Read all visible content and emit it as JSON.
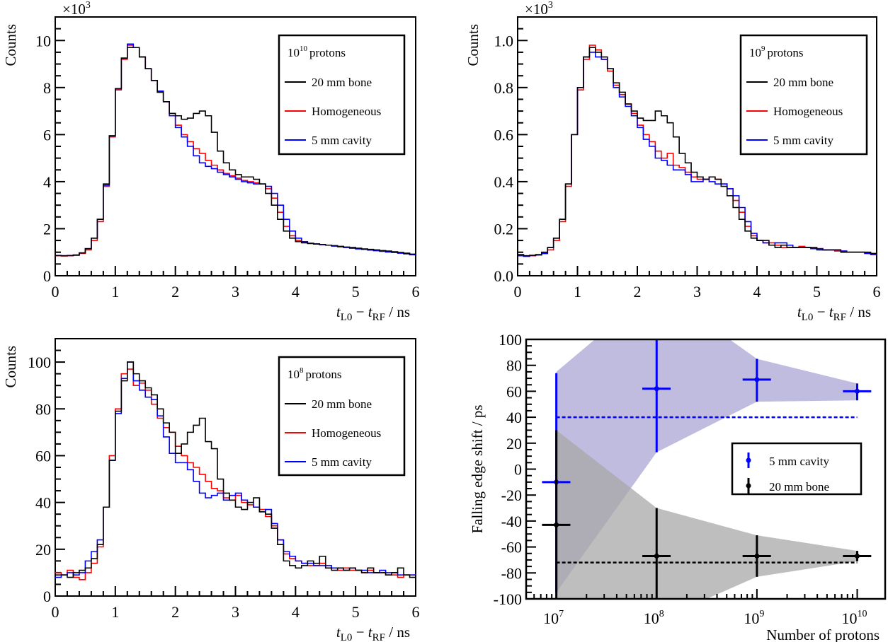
{
  "colors": {
    "bone": "#000000",
    "homogeneous": "#ff0000",
    "cavity": "#0000ff",
    "cavity_band": "#a9a5d4",
    "bone_band": "#a8a8a8"
  },
  "chart_data": [
    {
      "type": "line",
      "title": "10^10 protons",
      "legend": {
        "header_base": "10",
        "header_exp": "10",
        "header_text": "protons",
        "entries": [
          "20 mm bone",
          "Homogeneous",
          "5 mm cavity"
        ],
        "placement": "top-right"
      },
      "ylabel": "Counts",
      "yscale": {
        "times": "×10",
        "exp": "3"
      },
      "xlabel": {
        "t1": "t",
        "s1": "L0",
        "mid": " − ",
        "t2": "t",
        "s2": "RF",
        "tail": " / ns"
      },
      "xlim": [
        0,
        6
      ],
      "ylim": [
        0,
        11
      ],
      "xticks": [
        "0",
        "1",
        "2",
        "3",
        "4",
        "5",
        "6"
      ],
      "yticks": [
        "0",
        "2",
        "4",
        "6",
        "8",
        "10"
      ],
      "bin_width": 0.1,
      "series": [
        {
          "name": "20 mm bone",
          "values": [
            0.86,
            0.85,
            0.86,
            0.88,
            0.97,
            1.15,
            1.6,
            2.4,
            3.9,
            5.95,
            7.95,
            9.25,
            9.7,
            9.7,
            9.3,
            8.8,
            8.3,
            7.8,
            7.4,
            6.9,
            6.8,
            6.65,
            6.7,
            6.9,
            7.0,
            6.8,
            6.1,
            5.3,
            4.8,
            4.5,
            4.3,
            4.2,
            4.2,
            4.1,
            3.9,
            3.5,
            3.0,
            2.4,
            1.9,
            1.6,
            1.45,
            1.4,
            1.37,
            1.35,
            1.33,
            1.3,
            1.28,
            1.25,
            1.22,
            1.2,
            1.17,
            1.14,
            1.12,
            1.1,
            1.07,
            1.05,
            1.02,
            0.99,
            0.96,
            0.92
          ]
        },
        {
          "name": "Homogeneous",
          "values": [
            0.85,
            0.84,
            0.85,
            0.87,
            0.95,
            1.1,
            1.5,
            2.3,
            3.8,
            5.9,
            7.9,
            9.2,
            9.8,
            9.7,
            9.3,
            8.8,
            8.3,
            7.8,
            7.4,
            6.9,
            6.4,
            6.0,
            5.7,
            5.4,
            5.2,
            4.9,
            4.7,
            4.5,
            4.35,
            4.25,
            4.15,
            4.05,
            4.0,
            3.95,
            3.9,
            3.7,
            3.3,
            2.7,
            2.1,
            1.7,
            1.5,
            1.42,
            1.38,
            1.35,
            1.33,
            1.3,
            1.27,
            1.24,
            1.21,
            1.18,
            1.15,
            1.13,
            1.1,
            1.07,
            1.05,
            1.02,
            1.0,
            0.97,
            0.94,
            0.9
          ]
        },
        {
          "name": "5 mm cavity",
          "values": [
            0.86,
            0.85,
            0.86,
            0.88,
            0.97,
            1.15,
            1.6,
            2.4,
            3.85,
            5.95,
            7.95,
            9.25,
            9.85,
            9.7,
            9.3,
            8.8,
            8.3,
            7.85,
            7.4,
            6.8,
            6.3,
            5.9,
            5.5,
            5.1,
            4.8,
            4.65,
            4.55,
            4.4,
            4.3,
            4.2,
            4.1,
            4.0,
            3.95,
            3.9,
            3.9,
            3.8,
            3.5,
            3.0,
            2.4,
            1.9,
            1.6,
            1.45,
            1.38,
            1.35,
            1.32,
            1.3,
            1.26,
            1.23,
            1.2,
            1.17,
            1.14,
            1.12,
            1.09,
            1.07,
            1.04,
            1.01,
            0.99,
            0.96,
            0.93,
            0.89
          ]
        }
      ]
    },
    {
      "type": "line",
      "title": "10^9 protons",
      "legend": {
        "header_base": "10",
        "header_exp": "9",
        "header_text": "protons",
        "entries": [
          "20 mm bone",
          "Homogeneous",
          "5 mm cavity"
        ],
        "placement": "top-right"
      },
      "ylabel": "Counts",
      "yscale": {
        "times": "×10",
        "exp": "3"
      },
      "xlabel": {
        "t1": "t",
        "s1": "L0",
        "mid": " − ",
        "t2": "t",
        "s2": "RF",
        "tail": " / ns"
      },
      "xlim": [
        0,
        6
      ],
      "ylim": [
        0,
        1.1
      ],
      "xticks": [
        "0",
        "1",
        "2",
        "3",
        "4",
        "5",
        "6"
      ],
      "yticks": [
        "0.0",
        "0.2",
        "0.4",
        "0.6",
        "0.8",
        "1.0"
      ],
      "bin_width": 0.1,
      "series": [
        {
          "name": "20 mm bone",
          "values": [
            0.09,
            0.085,
            0.087,
            0.09,
            0.1,
            0.12,
            0.16,
            0.24,
            0.39,
            0.6,
            0.8,
            0.93,
            0.97,
            0.95,
            0.93,
            0.88,
            0.82,
            0.78,
            0.73,
            0.7,
            0.67,
            0.66,
            0.66,
            0.7,
            0.68,
            0.65,
            0.59,
            0.52,
            0.48,
            0.44,
            0.42,
            0.41,
            0.42,
            0.41,
            0.38,
            0.34,
            0.29,
            0.24,
            0.19,
            0.16,
            0.15,
            0.15,
            0.13,
            0.12,
            0.13,
            0.12,
            0.12,
            0.12,
            0.12,
            0.12,
            0.11,
            0.11,
            0.11,
            0.11,
            0.1,
            0.1,
            0.1,
            0.1,
            0.1,
            0.095
          ]
        },
        {
          "name": "Homogeneous",
          "values": [
            0.085,
            0.082,
            0.085,
            0.088,
            0.094,
            0.11,
            0.15,
            0.23,
            0.38,
            0.6,
            0.79,
            0.92,
            0.98,
            0.96,
            0.92,
            0.87,
            0.81,
            0.77,
            0.73,
            0.69,
            0.64,
            0.6,
            0.57,
            0.53,
            0.5,
            0.52,
            0.47,
            0.46,
            0.44,
            0.42,
            0.41,
            0.41,
            0.42,
            0.41,
            0.39,
            0.37,
            0.32,
            0.27,
            0.21,
            0.17,
            0.15,
            0.14,
            0.14,
            0.13,
            0.12,
            0.12,
            0.12,
            0.125,
            0.12,
            0.115,
            0.115,
            0.11,
            0.11,
            0.105,
            0.105,
            0.1,
            0.1,
            0.1,
            0.095,
            0.09
          ]
        },
        {
          "name": "5 mm cavity",
          "values": [
            0.085,
            0.083,
            0.086,
            0.088,
            0.095,
            0.12,
            0.16,
            0.24,
            0.39,
            0.6,
            0.8,
            0.93,
            0.95,
            0.93,
            0.92,
            0.88,
            0.8,
            0.76,
            0.72,
            0.68,
            0.63,
            0.58,
            0.55,
            0.5,
            0.49,
            0.47,
            0.45,
            0.45,
            0.43,
            0.4,
            0.4,
            0.41,
            0.4,
            0.39,
            0.39,
            0.37,
            0.34,
            0.29,
            0.23,
            0.18,
            0.15,
            0.14,
            0.13,
            0.14,
            0.14,
            0.13,
            0.12,
            0.12,
            0.12,
            0.115,
            0.115,
            0.11,
            0.11,
            0.11,
            0.105,
            0.1,
            0.1,
            0.1,
            0.095,
            0.09
          ]
        }
      ]
    },
    {
      "type": "line",
      "title": "10^8 protons",
      "legend": {
        "header_base": "10",
        "header_exp": "8",
        "header_text": "protons",
        "entries": [
          "20 mm bone",
          "Homogeneous",
          "5 mm cavity"
        ],
        "placement": "top-right"
      },
      "ylabel": "Counts",
      "xlabel": {
        "t1": "t",
        "s1": "L0",
        "mid": " − ",
        "t2": "t",
        "s2": "RF",
        "tail": " / ns"
      },
      "xlim": [
        0,
        6
      ],
      "ylim": [
        0,
        110
      ],
      "xticks": [
        "0",
        "1",
        "2",
        "3",
        "4",
        "5",
        "6"
      ],
      "yticks": [
        "0",
        "20",
        "40",
        "60",
        "80",
        "100"
      ],
      "bin_width": 0.1,
      "series": [
        {
          "name": "20 mm bone",
          "values": [
            9,
            9,
            8,
            10,
            11,
            12,
            16,
            22,
            38,
            58,
            79,
            92,
            100,
            95,
            92,
            89,
            86,
            80,
            74,
            70,
            61,
            65,
            70,
            73,
            76,
            66,
            63,
            50,
            44,
            41,
            38,
            37,
            40,
            42,
            36,
            35,
            29,
            22,
            15,
            13,
            12,
            13,
            15,
            14,
            17,
            12,
            11,
            12,
            11,
            12,
            11,
            10,
            12,
            10,
            10,
            9,
            10,
            12,
            9,
            8
          ]
        },
        {
          "name": "Homogeneous",
          "values": [
            10,
            9,
            11,
            8,
            7,
            10,
            14,
            21,
            38,
            60,
            80,
            95,
            97,
            90,
            91,
            88,
            82,
            76,
            72,
            70,
            64,
            60,
            57,
            55,
            52,
            49,
            46,
            45,
            42,
            41,
            43,
            40,
            39,
            38,
            37,
            34,
            30,
            24,
            18,
            16,
            15,
            14,
            13,
            13,
            14,
            12,
            12,
            11,
            12,
            11,
            11,
            10,
            11,
            10,
            10,
            9,
            9,
            8,
            9,
            9
          ]
        },
        {
          "name": "5 mm cavity",
          "values": [
            8,
            9,
            10,
            9,
            10,
            15,
            19,
            24,
            38,
            58,
            78,
            93,
            100,
            92,
            88,
            85,
            84,
            77,
            68,
            61,
            57,
            57,
            54,
            49,
            44,
            42,
            43,
            44,
            41,
            43,
            44,
            41,
            40,
            38,
            36,
            37,
            31,
            24,
            19,
            17,
            15,
            14,
            14,
            13,
            13,
            13,
            12,
            12,
            11,
            12,
            11,
            11,
            10,
            10,
            11,
            10,
            10,
            9,
            9,
            9
          ]
        }
      ]
    },
    {
      "type": "scatter",
      "ylabel": "Falling edge shift / ps",
      "xlabel": "Number of protons",
      "xscale": "log",
      "xlim": [
        5000000.0,
        19000000000.0
      ],
      "ylim": [
        -100,
        100
      ],
      "xticks": [
        {
          "base": "10",
          "exp": "7"
        },
        {
          "base": "10",
          "exp": "8"
        },
        {
          "base": "10",
          "exp": "9"
        },
        {
          "base": "10",
          "exp": "10"
        }
      ],
      "yticks": [
        "-100",
        "-80",
        "-60",
        "-40",
        "-20",
        "0",
        "20",
        "40",
        "60",
        "80",
        "100"
      ],
      "legend": {
        "entries": [
          "5 mm cavity",
          "20 mm bone"
        ],
        "placement": "center-right"
      },
      "series": [
        {
          "name": "5 mm cavity",
          "x": [
            10000000.0,
            100000000.0,
            1000000000.0,
            10000000000.0
          ],
          "y": [
            -10,
            62,
            69,
            60
          ],
          "y_low": [
            -95,
            13,
            52,
            53
          ],
          "y_high": [
            74,
            100,
            85,
            66
          ],
          "x_low_factor": 0.72,
          "x_high_factor": 1.38,
          "band_upper": [
            75,
            140,
            85,
            66
          ],
          "band_lower": [
            -95,
            13,
            52,
            53
          ],
          "mean_line": 40
        },
        {
          "name": "20 mm bone",
          "x": [
            10000000.0,
            100000000.0,
            1000000000.0,
            10000000000.0
          ],
          "y": [
            -43,
            -67,
            -67,
            -67
          ],
          "y_low": [
            -116,
            -117,
            -83,
            -71
          ],
          "y_high": [
            30,
            -30,
            -51,
            -63
          ],
          "x_low_factor": 0.72,
          "x_high_factor": 1.38,
          "band_upper": [
            30,
            -30,
            -51,
            -63
          ],
          "band_lower": [
            -116,
            -117,
            -83,
            -71
          ],
          "mean_line": -72
        }
      ]
    }
  ]
}
